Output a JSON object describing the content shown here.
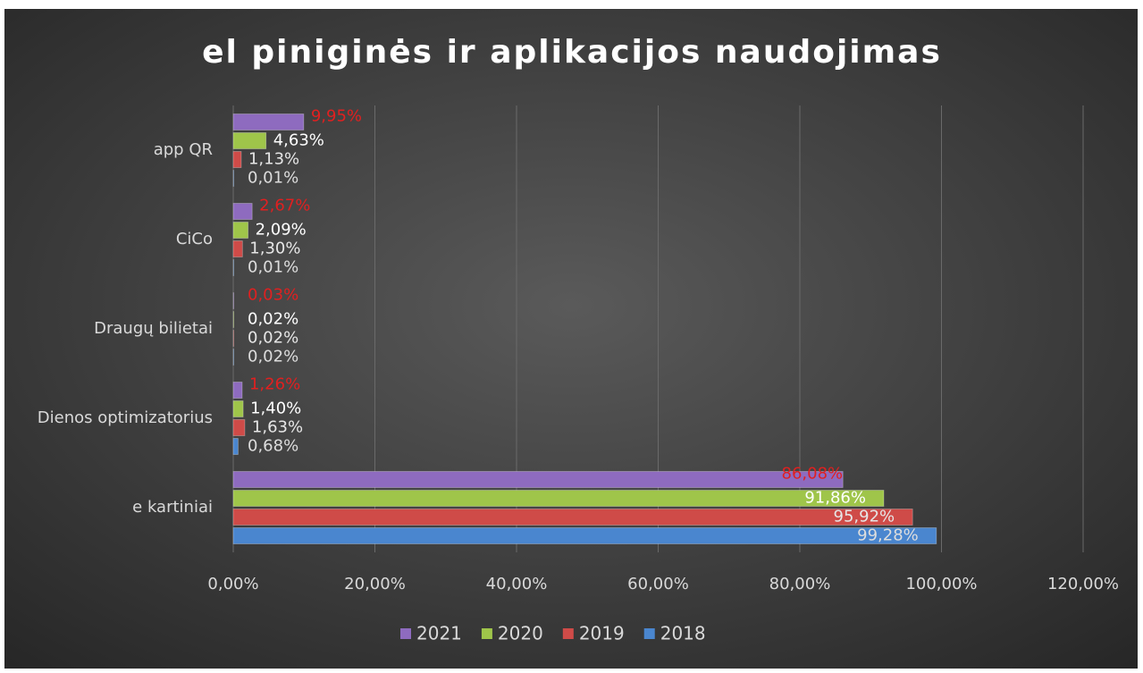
{
  "chart_data": {
    "type": "hbar",
    "title": "el piniginės ir aplikacijos naudojimas",
    "categories": [
      "app QR",
      "CiCo",
      "Draugų bilietai",
      "Dienos optimizatorius",
      "e kartiniai"
    ],
    "series": [
      {
        "name": "2021",
        "color": "#8e6bbf",
        "label_color": "#e02020",
        "values": [
          9.95,
          2.67,
          0.03,
          1.26,
          86.08
        ],
        "value_labels": [
          "9,95%",
          "2,67%",
          "0,03%",
          "1,26%",
          "86,08%"
        ]
      },
      {
        "name": "2020",
        "color": "#9fc54a",
        "label_color": "#ffffff",
        "values": [
          4.63,
          2.09,
          0.02,
          1.4,
          91.86
        ],
        "value_labels": [
          "4,63%",
          "2,09%",
          "0,02%",
          "1,40%",
          "91,86%"
        ]
      },
      {
        "name": "2019",
        "color": "#cf4b48",
        "label_color": "#e6e6e6",
        "values": [
          1.13,
          1.3,
          0.02,
          1.63,
          95.92
        ],
        "value_labels": [
          "1,13%",
          "1,30%",
          "0,02%",
          "1,63%",
          "95,92%"
        ]
      },
      {
        "name": "2018",
        "color": "#4a86cf",
        "label_color": "#dddddd",
        "values": [
          0.01,
          0.01,
          0.02,
          0.68,
          99.28
        ],
        "value_labels": [
          "0,01%",
          "0,01%",
          "0,02%",
          "0,68%",
          "99,28%"
        ]
      }
    ],
    "xlim": [
      0,
      120
    ],
    "xticks": [
      {
        "value": 0,
        "label": "0,00%"
      },
      {
        "value": 20,
        "label": "20,00%"
      },
      {
        "value": 40,
        "label": "40,00%"
      },
      {
        "value": 60,
        "label": "60,00%"
      },
      {
        "value": 80,
        "label": "80,00%"
      },
      {
        "value": 100,
        "label": "100,00%"
      },
      {
        "value": 120,
        "label": "120,00%"
      }
    ],
    "grid": true,
    "legend": "bottom"
  }
}
